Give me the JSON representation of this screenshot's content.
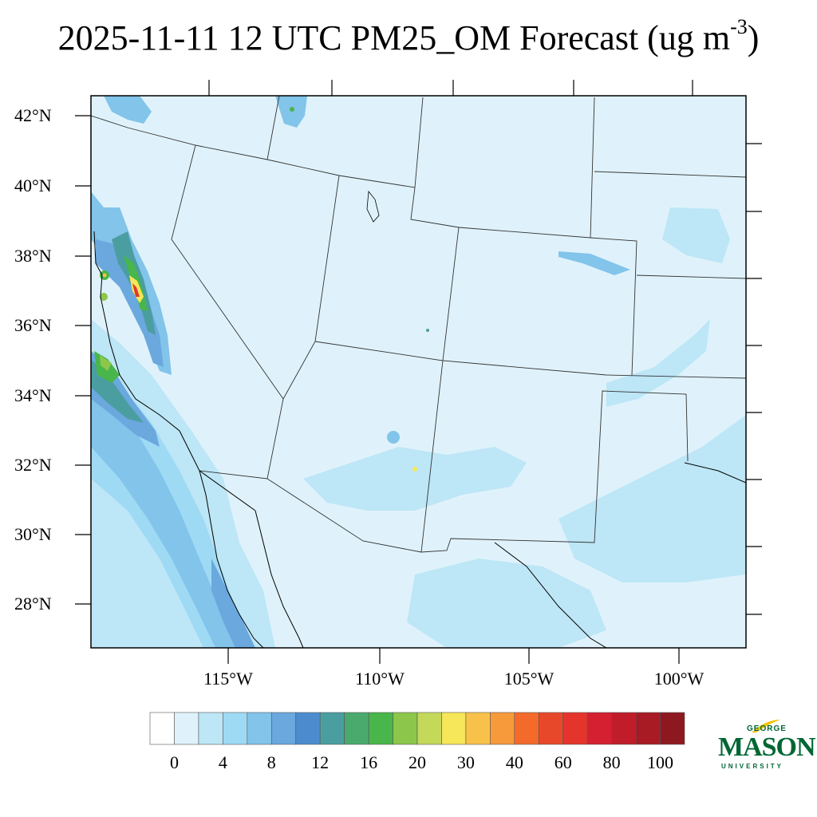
{
  "title": {
    "main": "2025-11-11 12 UTC PM25_OM Forecast (ug m",
    "superscript": "-3",
    "close": ")"
  },
  "latitude_labels": [
    "42°N",
    "40°N",
    "38°N",
    "36°N",
    "34°N",
    "32°N",
    "30°N",
    "28°N"
  ],
  "longitude_labels": [
    "115°W",
    "110°W",
    "105°W",
    "100°W"
  ],
  "colorbar": {
    "labels": [
      "0",
      "4",
      "8",
      "12",
      "16",
      "20",
      "30",
      "40",
      "60",
      "80",
      "100"
    ],
    "colors": [
      "#ffffff",
      "#dff2fb",
      "#bde6f6",
      "#9fdaf5",
      "#82c4ea",
      "#6aa8de",
      "#4c8cce",
      "#4a9ea0",
      "#4aaa6e",
      "#48b64a",
      "#8cc64a",
      "#c4d85a",
      "#f6e65a",
      "#f8c24a",
      "#f69a3c",
      "#f46a2a",
      "#e8482a",
      "#e4342c",
      "#d42030",
      "#c01c2a",
      "#a81a24",
      "#8e1820"
    ]
  },
  "map_colors": {
    "background": "#dff2fb",
    "light_blue": "#bde6f6",
    "mid_blue": "#9fdaf5",
    "blue": "#82c4ea",
    "dark_blue": "#6aa8de",
    "teal": "#4a9ea0",
    "green": "#48b64a",
    "light_green": "#8cc64a",
    "yellow": "#f6e65a",
    "orange": "#f8c24a",
    "red": "#e4342c"
  },
  "logo": {
    "line1": "GEORGE",
    "line2": "MASON",
    "line3": "UNIVERSITY"
  }
}
